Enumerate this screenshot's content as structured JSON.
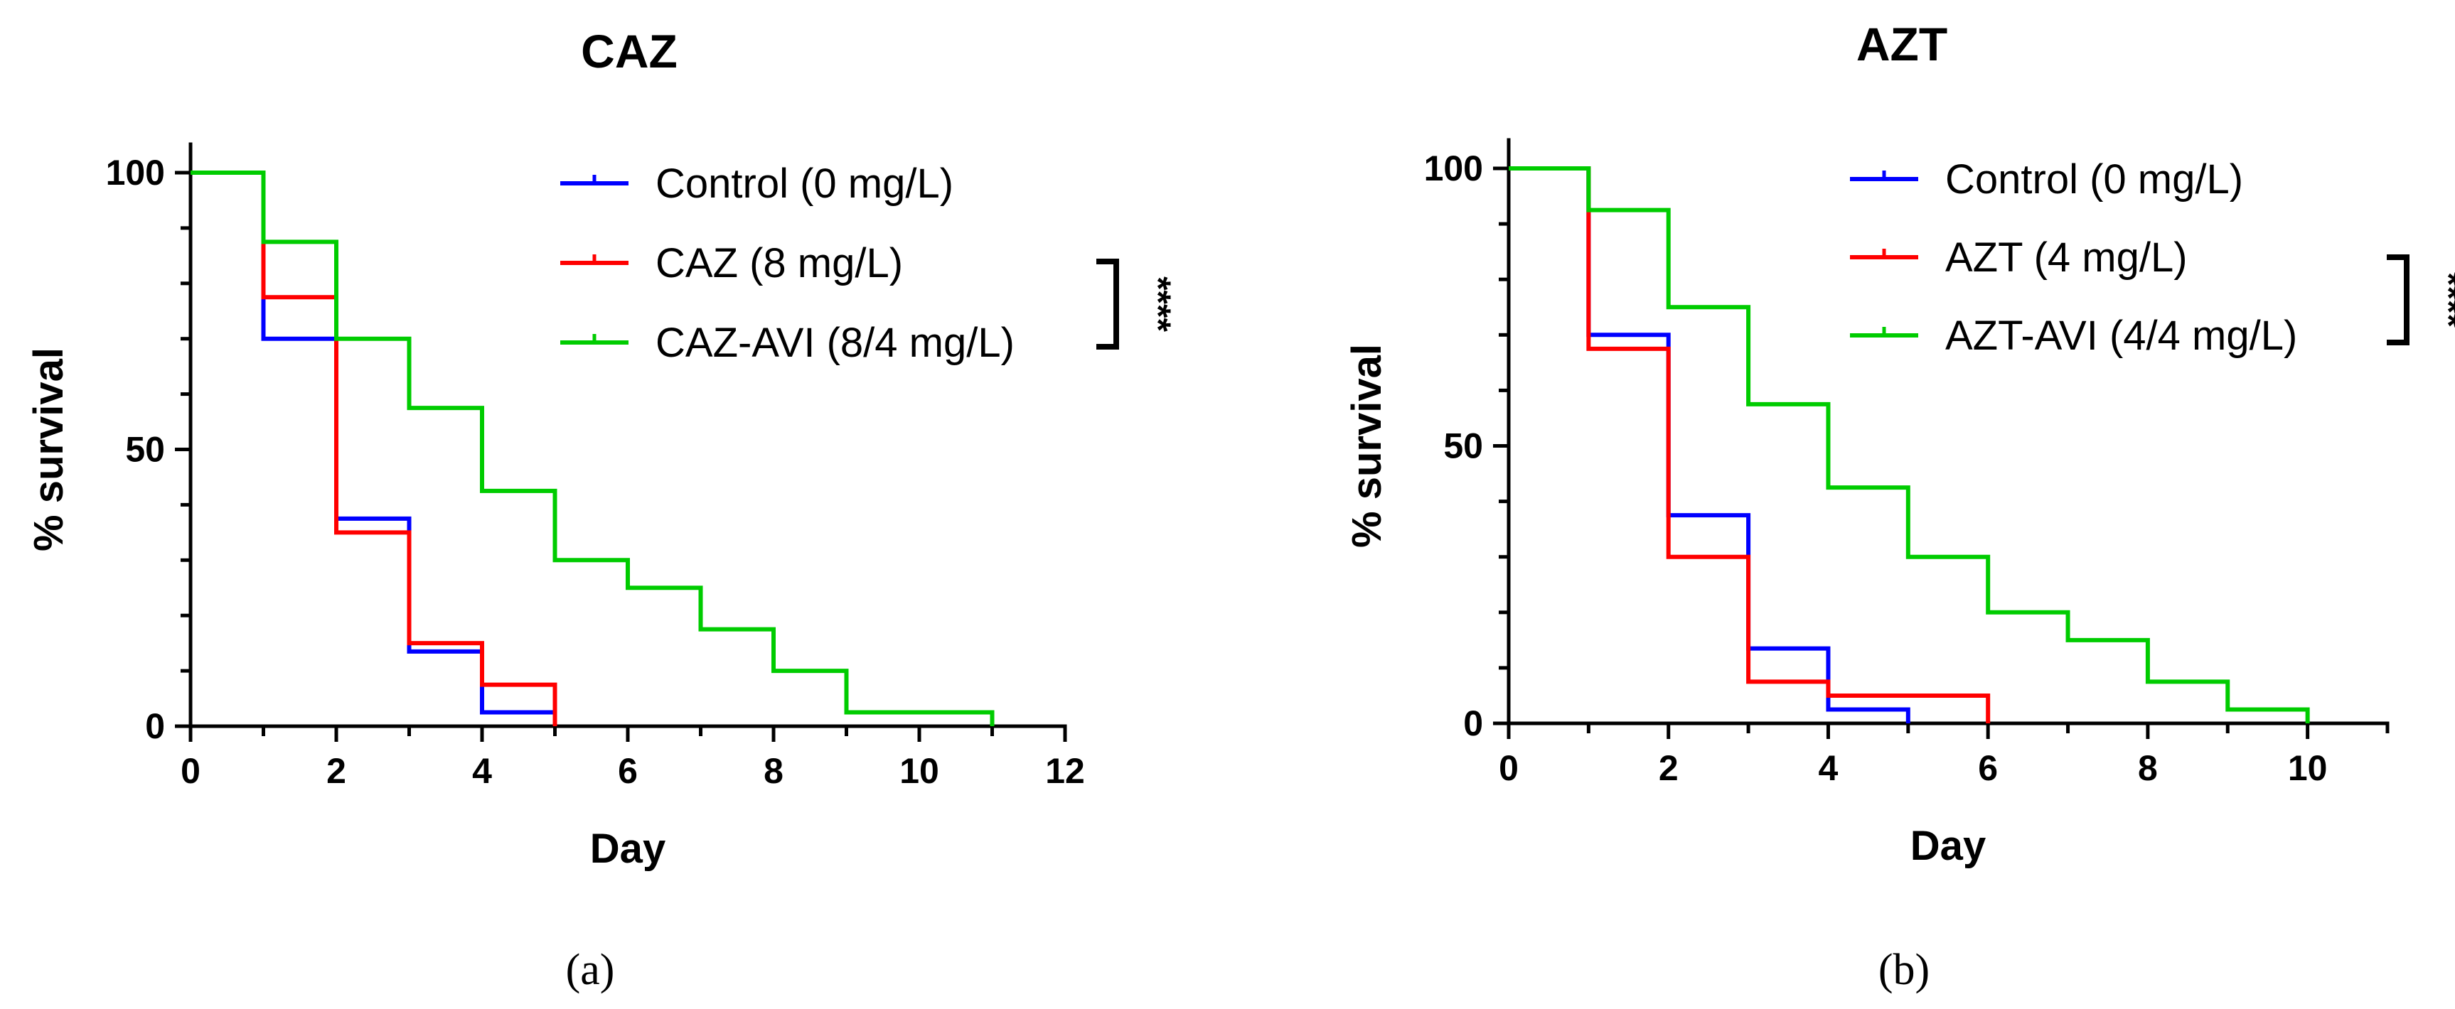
{
  "chart_data": [
    {
      "type": "line",
      "subtype": "kaplan-meier-step",
      "title": "CAZ",
      "xlabel": "Day",
      "ylabel": "% survival",
      "xlim": [
        0,
        12
      ],
      "ylim": [
        0,
        100
      ],
      "xticks": [
        0,
        2,
        4,
        6,
        8,
        10,
        12
      ],
      "yticks": [
        0,
        50,
        100
      ],
      "panel_label": "(a)",
      "significance": "****",
      "legend_position": "top-right",
      "series": [
        {
          "name": "Control (0 mg/L)",
          "color": "#0000ff",
          "x": [
            0,
            1,
            2,
            3,
            4,
            5
          ],
          "y": [
            100,
            70,
            37.5,
            13.5,
            2.5,
            0
          ]
        },
        {
          "name": "CAZ (8 mg/L)",
          "color": "#ff0000",
          "x": [
            0,
            1,
            2,
            3,
            4,
            5
          ],
          "y": [
            100,
            77.5,
            35,
            15,
            7.5,
            0
          ]
        },
        {
          "name": "CAZ-AVI (8/4 mg/L)",
          "color": "#00cc00",
          "x": [
            0,
            1,
            2,
            3,
            4,
            5,
            6,
            7,
            8,
            9,
            11
          ],
          "y": [
            100,
            87.5,
            70,
            57.5,
            42.5,
            30,
            25,
            17.5,
            10,
            2.5,
            0
          ]
        }
      ]
    },
    {
      "type": "line",
      "subtype": "kaplan-meier-step",
      "title": "AZT",
      "xlabel": "Day",
      "ylabel": "% survival",
      "xlim": [
        0,
        11
      ],
      "ylim": [
        0,
        100
      ],
      "xticks": [
        0,
        2,
        4,
        6,
        8,
        10
      ],
      "yticks": [
        0,
        50,
        100
      ],
      "panel_label": "(b)",
      "significance": "****",
      "legend_position": "top-right",
      "series": [
        {
          "name": "Control (0 mg/L)",
          "color": "#0000ff",
          "x": [
            0,
            1,
            2,
            3,
            4,
            5
          ],
          "y": [
            100,
            70,
            37.5,
            13.5,
            2.5,
            0
          ]
        },
        {
          "name": "AZT (4 mg/L)",
          "color": "#ff0000",
          "x": [
            0,
            1,
            2,
            3,
            4,
            6
          ],
          "y": [
            100,
            67.5,
            30,
            7.5,
            5,
            0
          ]
        },
        {
          "name": "AZT-AVI (4/4 mg/L)",
          "color": "#00cc00",
          "x": [
            0,
            1,
            2,
            3,
            4,
            5,
            6,
            7,
            8,
            9,
            10
          ],
          "y": [
            100,
            92.5,
            75,
            57.5,
            42.5,
            30,
            20,
            15,
            7.5,
            2.5,
            0
          ]
        }
      ]
    }
  ]
}
